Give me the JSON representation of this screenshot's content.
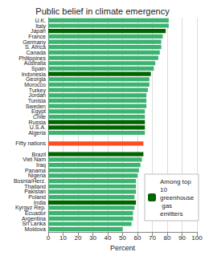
{
  "chart_data": {
    "type": "bar",
    "orientation": "horizontal",
    "title": "Public belief in climate emergency",
    "x_label": "Percent",
    "categories": [
      "U.K.",
      "Italy",
      "Japan",
      "France",
      "Germany",
      "S. Africa",
      "Canada",
      "Philippines",
      "Australia",
      "Spain",
      "Indonesia",
      "Georgia",
      "Morocco",
      "Turkey",
      "Jordan",
      "Tunisia",
      "Sweden",
      "Egypt",
      "Chile",
      "Russia",
      "U.S.A.",
      "Algeria",
      null,
      "Fifty nations",
      null,
      "Brazil",
      "Viet Nam",
      "Iraq",
      "Panama",
      "Nigeria",
      "Bosnia/Herz.",
      "Thailand",
      "Pakistan",
      "Poland",
      "India",
      "Kyrgyz Rep.",
      "Ecuador",
      "Argentina",
      "Sri Lanka",
      "Moldova"
    ],
    "series": [
      {
        "colors": [
          "#3cb371",
          "#3cb371",
          null,
          "#3cb371",
          "#3cb371",
          "#3cb371",
          "#3cb371",
          "#3cb371",
          "#3cb371",
          "#3cb371",
          null,
          "#3cb371",
          "#3cb371",
          "#3cb371",
          "#3cb371",
          "#3cb371",
          "#3cb371",
          "#3cb371",
          "#3cb371",
          null,
          null,
          "#3cb371",
          null,
          "#ff4b1f",
          null,
          null,
          "#3cb371",
          "#3cb371",
          "#3cb371",
          "#3cb371",
          "#3cb371",
          "#3cb371",
          "#3cb371",
          "#3cb371",
          null,
          "#3cb371",
          "#3cb371",
          "#3cb371",
          "#3cb371",
          "#3cb371"
        ],
        "values": [
          81,
          81,
          null,
          77,
          76,
          76,
          75,
          74,
          72,
          71,
          null,
          68,
          68,
          67,
          66,
          66,
          66,
          65,
          65,
          null,
          null,
          65,
          null,
          64,
          null,
          null,
          63,
          62,
          61,
          60,
          59,
          59,
          59,
          58,
          null,
          58,
          57,
          57,
          56,
          50
        ]
      },
      {
        "name": "Among top 10 greenhouse gas emitters",
        "color": "#006400",
        "values": [
          null,
          null,
          79,
          null,
          null,
          null,
          null,
          null,
          null,
          null,
          69,
          null,
          null,
          null,
          null,
          null,
          null,
          null,
          null,
          65,
          65,
          null,
          null,
          null,
          null,
          64,
          null,
          null,
          null,
          null,
          null,
          null,
          null,
          null,
          59,
          null,
          null,
          null,
          null,
          null
        ]
      }
    ],
    "xlim": [
      0,
      100
    ],
    "xticks": [
      0,
      10,
      20,
      30,
      40,
      50,
      60,
      70,
      80,
      90,
      100
    ],
    "grid": true,
    "legend": "lower right"
  }
}
